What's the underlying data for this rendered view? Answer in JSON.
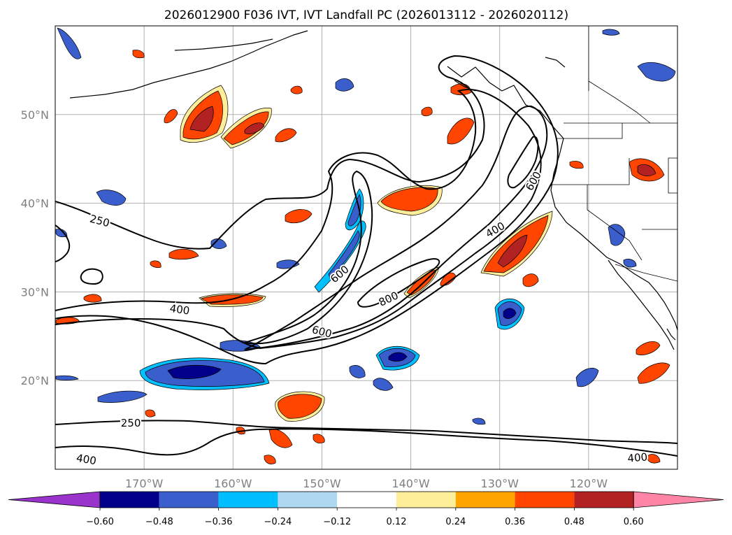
{
  "title": "2026012900 F036 IVT, IVT Landfall PC (2026013112 - 2026020112)",
  "map": {
    "lon_range": [
      -180,
      -110
    ],
    "lat_range": [
      10,
      60
    ],
    "lon_ticks": [
      {
        "value": -170,
        "label": "170°W"
      },
      {
        "value": -160,
        "label": "160°W"
      },
      {
        "value": -150,
        "label": "150°W"
      },
      {
        "value": -140,
        "label": "140°W"
      },
      {
        "value": -130,
        "label": "130°W"
      },
      {
        "value": -120,
        "label": "120°W"
      }
    ],
    "lat_ticks": [
      {
        "value": 20,
        "label": "20°N"
      },
      {
        "value": 30,
        "label": "30°N"
      },
      {
        "value": 40,
        "label": "40°N"
      },
      {
        "value": 50,
        "label": "50°N"
      }
    ],
    "contour_labels": [
      {
        "text": "250",
        "lon": -175,
        "lat": 38.0,
        "angle": 15
      },
      {
        "text": "250",
        "lon": -171.5,
        "lat": 15.2,
        "angle": 0
      },
      {
        "text": "400",
        "lon": -166,
        "lat": 28.0,
        "angle": 8
      },
      {
        "text": "400",
        "lon": -176.5,
        "lat": 11.1,
        "angle": 10
      },
      {
        "text": "400",
        "lon": -114.5,
        "lat": 11.3,
        "angle": -5
      },
      {
        "text": "400",
        "lon": -130.5,
        "lat": 37.0,
        "angle": -30
      },
      {
        "text": "600",
        "lon": -148,
        "lat": 32.0,
        "angle": -40
      },
      {
        "text": "600",
        "lon": -150,
        "lat": 25.5,
        "angle": 15
      },
      {
        "text": "600",
        "lon": -126.2,
        "lat": 42.5,
        "angle": -60
      },
      {
        "text": "800",
        "lon": -142.5,
        "lat": 29.2,
        "angle": -25
      }
    ]
  },
  "colorbar": {
    "colors": [
      "#9933cc",
      "#00008b",
      "#3a5fcd",
      "#00bfff",
      "#add8f0",
      "#ffffff",
      "#ffee99",
      "#ffa500",
      "#ff4500",
      "#b22222",
      "#ff85a6"
    ],
    "tick_labels": [
      "−0.60",
      "−0.48",
      "−0.36",
      "−0.24",
      "−0.12",
      "0.12",
      "0.24",
      "0.36",
      "0.48",
      "0.60"
    ]
  }
}
